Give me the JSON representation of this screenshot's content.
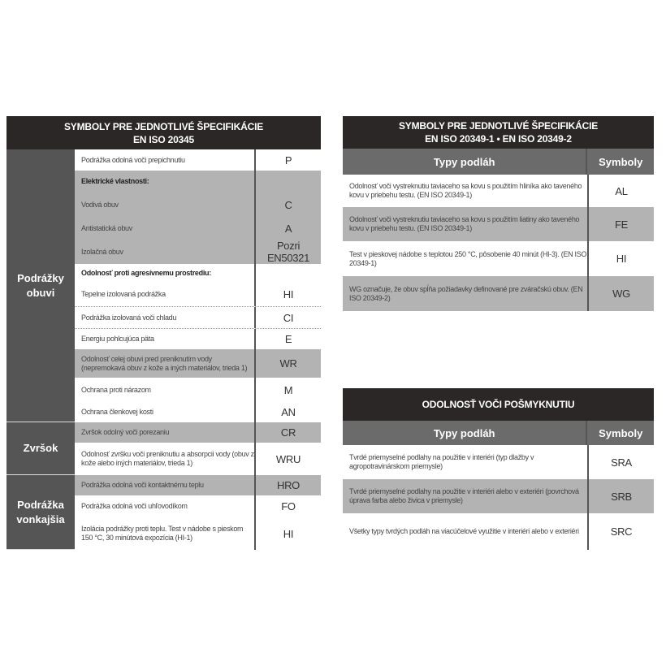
{
  "left": {
    "title1": "SYMBOLY PRE JEDNOTLIVÉ ŠPECIFIKÁCIE",
    "title2": "EN ISO 20345",
    "categories": [
      "Podrážky obuvi",
      "Zvršok",
      "Podrážka vonkajšia"
    ],
    "rows": [
      {
        "text": "Podrážka odolná voči prepichnutiu",
        "symbol": "P"
      },
      {
        "text": "Elektrické vlastnosti:",
        "symbol": ""
      },
      {
        "text": "Vodivá obuv",
        "symbol": "C"
      },
      {
        "text": "Antistatická obuv",
        "symbol": "A"
      },
      {
        "text": "Izolačná obuv",
        "symbol": "Pozri EN50321"
      },
      {
        "text": "Odolnosť proti agresívnemu prostrediu:",
        "symbol": ""
      },
      {
        "text": "Tepelne izolovaná podrážka",
        "symbol": "HI"
      },
      {
        "text": "Podrážka izolovaná voči chladu",
        "symbol": "CI"
      },
      {
        "text": "Energiu pohlcujúca päta",
        "symbol": "E"
      },
      {
        "text": "Odolnosť celej obuvi pred preniknutím vody (nepremokavá obuv z kože a iných materiálov, trieda 1)",
        "symbol": "WR"
      },
      {
        "text": "Ochrana proti nárazom",
        "symbol": "M"
      },
      {
        "text": "Ochrana členkovej kosti",
        "symbol": "AN"
      },
      {
        "text": "Zvršok odolný voči porezaniu",
        "symbol": "CR"
      },
      {
        "text": "Odolnosť zvršku voči preniknutiu a absorpcii vody (obuv z kože alebo iných materiálov, trieda 1)",
        "symbol": "WRU"
      },
      {
        "text": "Podrážka odolná voči kontaktnému teplu",
        "symbol": "HRO"
      },
      {
        "text": "Podrážka odolná voči uhľovodíkom",
        "symbol": "FO"
      },
      {
        "text": "Izolácia podrážky proti teplu. Test v nádobe s pieskom 150 °C, 30 minútová expozícia (HI-1)",
        "symbol": "HI"
      }
    ]
  },
  "right1": {
    "title1": "SYMBOLY PRE JEDNOTLIVÉ ŠPECIFIKÁCIE",
    "title2": "EN ISO 20349-1 • EN ISO 20349-2",
    "col1": "Typy podláh",
    "col2": "Symboly",
    "rows": [
      {
        "text": "Odolnosť voči vystreknutiu taviaceho sa kovu s použitím hliníka ako taveného kovu v priebehu testu. (EN ISO 20349-1)",
        "symbol": "AL"
      },
      {
        "text": "Odolnosť voči vystreknutiu taviaceho sa kovu s použitím liatiny ako taveného kovu v priebehu testu. (EN ISO 20349-1)",
        "symbol": "FE"
      },
      {
        "text": "Test v pieskovej nádobe s teplotou 250 °C, pôsobenie 40 minút (HI-3). (EN ISO 20349-1)",
        "symbol": "HI"
      },
      {
        "text": "WG označuje, že obuv spĺňa požiadavky definované pre zváračskú obuv. (EN ISO 20349-2)",
        "symbol": "WG"
      }
    ]
  },
  "right2": {
    "title1": "ODOLNOSŤ VOČI POŠMYKNUTIU",
    "col1": "Typy podláh",
    "col2": "Symboly",
    "rows": [
      {
        "text": "Tvrdé priemyselné podlahy na použitie v interiéri (typ dlažby v agropotravinárskom priemysle)",
        "symbol": "SRA"
      },
      {
        "text": "Tvrdé priemyselné podlahy na použitie v interiéri alebo v exteriéri (povrchová úprava farba alebo živica v priemysle)",
        "symbol": "SRB"
      },
      {
        "text": "Všetky typy tvrdých podláh na viacúčelové využitie v interiéri alebo v exteriéri",
        "symbol": "SRC"
      }
    ]
  }
}
